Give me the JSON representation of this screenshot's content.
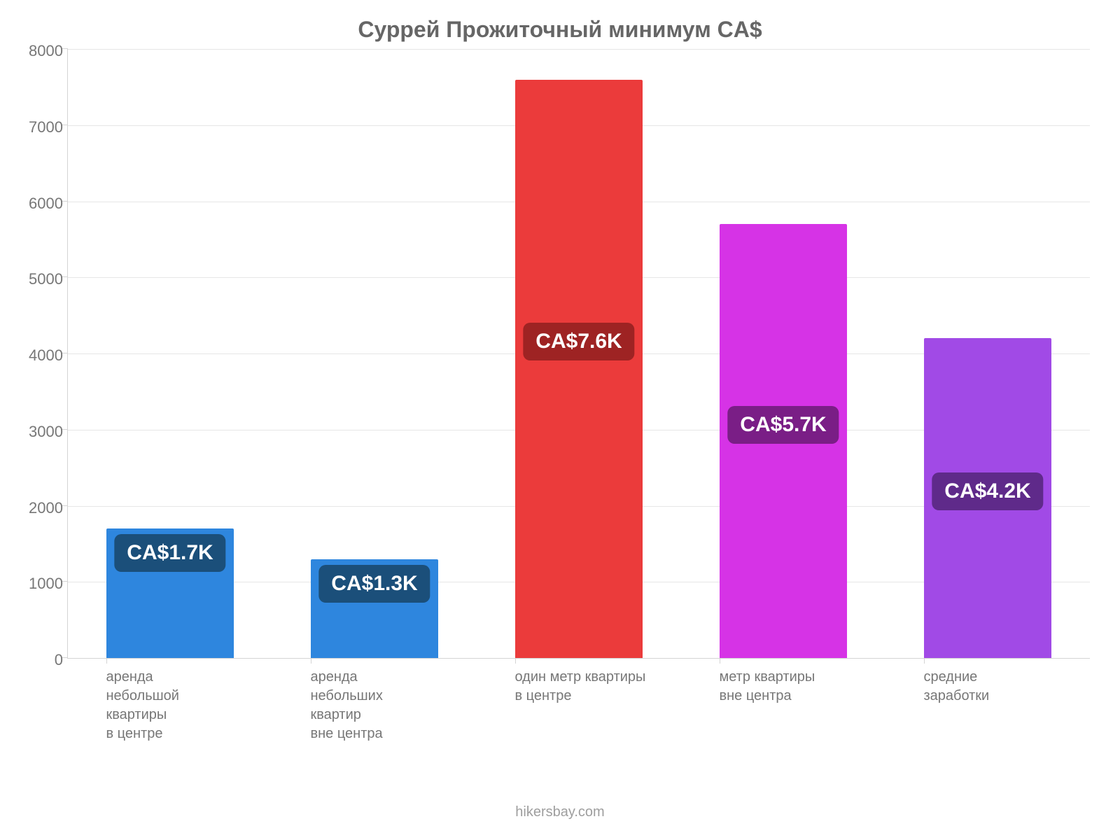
{
  "chart": {
    "type": "bar",
    "title": "Суррей Прожиточный минимум CA$",
    "title_fontsize": 32,
    "title_color": "#666666",
    "background_color": "#ffffff",
    "axis_color": "#d4d4d4",
    "grid_color": "#e6e6e6",
    "ylim": [
      0,
      8000
    ],
    "ytick_step": 1000,
    "yticks": [
      0,
      1000,
      2000,
      3000,
      4000,
      5000,
      6000,
      7000,
      8000
    ],
    "ytick_fontsize": 22,
    "ytick_color": "#777777",
    "x_label_fontsize": 20,
    "x_label_color": "#777777",
    "bar_width_ratio": 0.62,
    "value_label_fontsize": 30,
    "footer": "hikersbay.com",
    "footer_fontsize": 20,
    "footer_color": "#9e9e9e",
    "bars": [
      {
        "category": "аренда\nнебольшой\nквартиры\nв центре",
        "value": 1700,
        "display": "CA$1.7K",
        "bar_color": "#2e86de",
        "label_bg": "#1b4f7a"
      },
      {
        "category": "аренда\nнебольших\nквартир\nвне центра",
        "value": 1300,
        "display": "CA$1.3K",
        "bar_color": "#2e86de",
        "label_bg": "#1b4f7a"
      },
      {
        "category": "один метр квартиры\nв центре",
        "value": 7600,
        "display": "CA$7.6K",
        "bar_color": "#eb3b3b",
        "label_bg": "#9e2323"
      },
      {
        "category": "метр квартиры\nвне центра",
        "value": 5700,
        "display": "CA$5.7K",
        "bar_color": "#d633e6",
        "label_bg": "#7a1e86"
      },
      {
        "category": "средние\nзаработки",
        "value": 4200,
        "display": "CA$4.2K",
        "bar_color": "#a14ae6",
        "label_bg": "#5f2a8a"
      }
    ]
  }
}
